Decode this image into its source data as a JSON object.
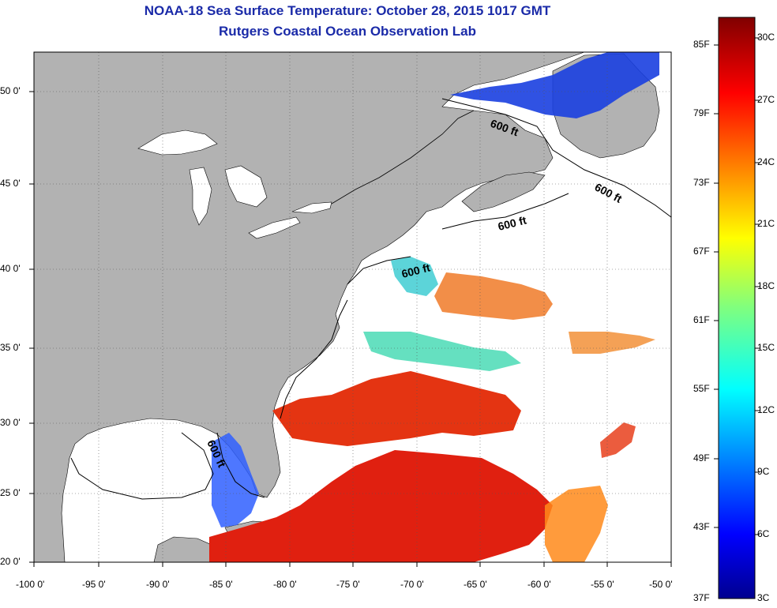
{
  "header": {
    "title": "NOAA-18 Sea Surface Temperature:  October 28, 2015 1017 GMT",
    "subtitle": "Rutgers Coastal Ocean Observation Lab"
  },
  "map": {
    "lon_range": [
      -100,
      -50
    ],
    "lat_range": [
      20,
      52.5
    ],
    "lon_ticks": [
      "-100 0'",
      "-95 0'",
      "-90 0'",
      "-85 0'",
      "-80 0'",
      "-75 0'",
      "-70 0'",
      "-65 0'",
      "-60 0'",
      "-55 0'",
      "-50 0'"
    ],
    "lat_ticks": [
      "20 0'",
      "25 0'",
      "30 0'",
      "35 0'",
      "40 0'",
      "45 0'",
      "50 0'"
    ],
    "isobath_labels": [
      "600 ft",
      "600 ft",
      "600 ft",
      "600 ft",
      "600 ft"
    ],
    "colors": {
      "land": "#b2b2b2",
      "ocean_nodata": "#ffffff",
      "title": "#1a2aa8"
    }
  },
  "colorbar": {
    "fahrenheit": [
      "85F",
      "79F",
      "73F",
      "67F",
      "61F",
      "55F",
      "49F",
      "43F",
      "37F"
    ],
    "celsius": [
      "30C",
      "27C",
      "24C",
      "21C",
      "18C",
      "15C",
      "12C",
      "9C",
      "6C",
      "3C"
    ],
    "colormap": "jet",
    "range_c": [
      3,
      31
    ]
  }
}
